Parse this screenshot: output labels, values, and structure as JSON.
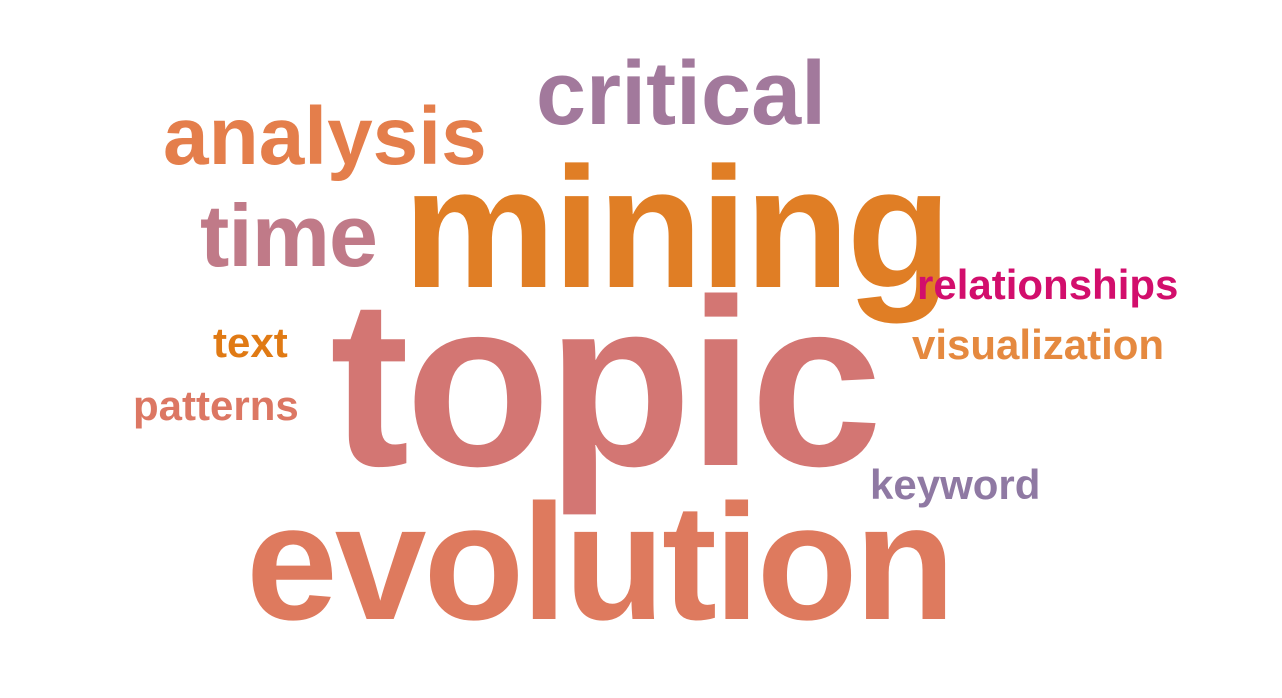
{
  "words": {
    "topic": {
      "text": "topic",
      "color": "#d37673"
    },
    "mining": {
      "text": "mining",
      "color": "#e07e25"
    },
    "evolution": {
      "text": "evolution",
      "color": "#de7a5e"
    },
    "analysis": {
      "text": "analysis",
      "color": "#e47e4b"
    },
    "critical": {
      "text": "critical",
      "color": "#a2799c"
    },
    "time": {
      "text": "time",
      "color": "#c07a88"
    },
    "relationships": {
      "text": "relationships",
      "color": "#d20e6c"
    },
    "visualization": {
      "text": "visualization",
      "color": "#e5893f"
    },
    "text": {
      "text": "text",
      "color": "#e07a14"
    },
    "patterns": {
      "text": "patterns",
      "color": "#dc7763"
    },
    "keyword": {
      "text": "keyword",
      "color": "#8f79a3"
    }
  }
}
